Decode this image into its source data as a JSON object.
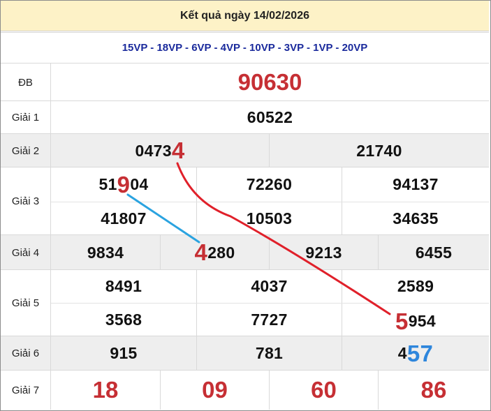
{
  "title": "Kết quả ngày 14/02/2026",
  "codes": "15VP - 18VP - 6VP - 4VP - 10VP - 3VP - 1VP - 20VP",
  "rows": {
    "db": {
      "label": "ĐB",
      "value": "90630"
    },
    "g1": {
      "label": "Giải 1",
      "value": "60522"
    },
    "g2": {
      "label": "Giải 2",
      "n1_pre": "0473",
      "n1_hl": "4",
      "n2": "21740"
    },
    "g3": {
      "label": "Giải 3",
      "a_pre": "51",
      "a_hl": "9",
      "a_post": "04",
      "b": "72260",
      "c": "94137",
      "d": "41807",
      "e": "10503",
      "f": "34635"
    },
    "g4": {
      "label": "Giải 4",
      "a": "9834",
      "b_hl": "4",
      "b_post": "280",
      "c": "9213",
      "d": "6455"
    },
    "g5": {
      "label": "Giải 5",
      "a": "8491",
      "b": "4037",
      "c": "2589",
      "d": "3568",
      "e": "7727",
      "f_hl": "5",
      "f_post": "954"
    },
    "g6": {
      "label": "Giải 6",
      "a": "915",
      "b": "781",
      "c_pre": "4",
      "c_hl": "57"
    },
    "g7": {
      "label": "Giải 7",
      "a": "18",
      "b": "09",
      "c": "60",
      "d": "86"
    }
  },
  "colors": {
    "highlight_red": "#c62f34",
    "highlight_blue": "#2e86dc",
    "header_bg": "#fdf2c7",
    "code_text": "#1a2a9c"
  }
}
